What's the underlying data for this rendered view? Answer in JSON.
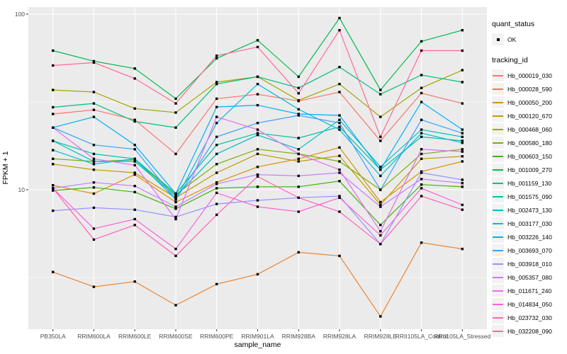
{
  "figure": {
    "quant_status_title": "quant_status",
    "quant_status_items": [
      {
        "label": "OK",
        "shape": "black-point"
      }
    ],
    "tracking_title": "tracking_id",
    "panel_bg": "#EBEBEB",
    "grid_color": "#FFFFFF",
    "tick_text_color": "#4D4D4D",
    "tick_mark_color": "#333333",
    "point_color": "#000000",
    "legend_key_bg": "#F2F2F2"
  },
  "chart_data": {
    "type": "line",
    "title": "",
    "xlabel": "sample_name",
    "ylabel": "FPKM + 1",
    "y_scale": "log10",
    "y_ticks": [
      10,
      100
    ],
    "y_minor_ticks": [
      3.16,
      31.6
    ],
    "ylim": [
      1.6,
      110
    ],
    "grid": true,
    "legend_position": "right",
    "categories": [
      "PB350LA",
      "RRIM600LA",
      "RRIM600LE",
      "RRIM600SE",
      "RRIM600PE",
      "RRIM901LA",
      "RRIM928BA",
      "RRIM928LA",
      "RRIM928LE",
      "RRII105LA_Control",
      "RRII105LA_Stressed"
    ],
    "series": [
      {
        "name": "Hb_000019_030",
        "color": "#F8766D",
        "values": [
          27,
          28.5,
          25,
          16,
          33,
          35,
          32,
          36,
          19,
          35.5,
          31
        ]
      },
      {
        "name": "Hb_000028_590",
        "color": "#EA8331",
        "values": [
          3.4,
          2.8,
          3.0,
          2.2,
          2.9,
          3.3,
          4.4,
          4.2,
          1.9,
          5.0,
          4.6
        ]
      },
      {
        "name": "Hb_000050_200",
        "color": "#D89000",
        "values": [
          10.6,
          9.5,
          12.2,
          8.5,
          11,
          13.5,
          15,
          17.4,
          8.5,
          12.7,
          14.5
        ]
      },
      {
        "name": "Hb_000120_670",
        "color": "#C09B00",
        "values": [
          14,
          13,
          12.5,
          9.0,
          12.5,
          16,
          14.5,
          15.6,
          8.2,
          15,
          15.5
        ]
      },
      {
        "name": "Hb_000468_060",
        "color": "#A3A500",
        "values": [
          37,
          36,
          29,
          27.5,
          41,
          44,
          32.3,
          40,
          26,
          38,
          48
        ]
      },
      {
        "name": "Hb_000580_180",
        "color": "#7CAE00",
        "values": [
          15,
          14.5,
          14.8,
          9.4,
          14,
          17,
          16,
          14.5,
          10,
          16,
          17
        ]
      },
      {
        "name": "Hb_000603_150",
        "color": "#39B600",
        "values": [
          9.9,
          10.3,
          9.7,
          7.8,
          10.2,
          10.4,
          10.4,
          11.2,
          6.3,
          10.7,
          10.4
        ]
      },
      {
        "name": "Hb_001009_270",
        "color": "#00BB4E",
        "values": [
          62,
          54,
          49,
          33,
          56,
          71,
          44,
          95,
          37,
          70,
          81
        ]
      },
      {
        "name": "Hb_001159_130",
        "color": "#00BF7D",
        "values": [
          29.5,
          31,
          24.5,
          22.6,
          40,
          44,
          38,
          50,
          35,
          45,
          41
        ]
      },
      {
        "name": "Hb_001575_090",
        "color": "#00C1A3",
        "values": [
          19,
          16,
          15,
          9.5,
          18,
          21,
          19.7,
          22.8,
          13,
          20,
          19
        ]
      },
      {
        "name": "Hb_002473_130",
        "color": "#00BFC4",
        "values": [
          19,
          14.5,
          14.5,
          9.2,
          16,
          20.5,
          17,
          25,
          13.5,
          22,
          20
        ]
      },
      {
        "name": "Hb_003177_030",
        "color": "#00BBDA",
        "values": [
          16.8,
          14,
          15,
          8.8,
          24,
          40,
          28.7,
          22,
          12,
          21,
          18.5
        ]
      },
      {
        "name": "Hb_003226_140",
        "color": "#00B0F6",
        "values": [
          22.6,
          26,
          18,
          9.5,
          29.6,
          30.3,
          27,
          26.5,
          13,
          31.6,
          22
        ]
      },
      {
        "name": "Hb_003693_070",
        "color": "#35A2FF",
        "values": [
          22.6,
          18,
          17,
          8.8,
          20,
          24,
          26.5,
          24,
          10,
          25,
          21
        ]
      },
      {
        "name": "Hb_003918_010",
        "color": "#9590FF",
        "values": [
          7.6,
          7.9,
          7.7,
          7.0,
          8.3,
          8.7,
          9.0,
          9.2,
          4.9,
          12.5,
          11.4
        ]
      },
      {
        "name": "Hb_005357_080",
        "color": "#C77CFF",
        "values": [
          10.2,
          11,
          10.5,
          8.0,
          10.8,
          12.2,
          12.0,
          12.5,
          8.0,
          11.5,
          10.9
        ]
      },
      {
        "name": "Hb_011671_240",
        "color": "#E76BF3",
        "values": [
          22.6,
          15,
          13.8,
          6.8,
          26,
          22,
          16,
          13,
          5.8,
          17,
          16.5
        ]
      },
      {
        "name": "Hb_014834_050",
        "color": "#FA62DB",
        "values": [
          10.2,
          6.0,
          6.8,
          4.6,
          9.6,
          8.0,
          7.5,
          9.0,
          5.5,
          10.2,
          8.2
        ]
      },
      {
        "name": "Hb_023732_030",
        "color": "#FF62BC",
        "values": [
          10.2,
          5.2,
          6.3,
          4.2,
          7.2,
          11.9,
          9.0,
          7.5,
          4.9,
          9.2,
          7.7
        ]
      },
      {
        "name": "Hb_032208_090",
        "color": "#FF6A98",
        "values": [
          51,
          53,
          43,
          31,
          58,
          65,
          35.4,
          81,
          20,
          62,
          62
        ]
      }
    ]
  }
}
